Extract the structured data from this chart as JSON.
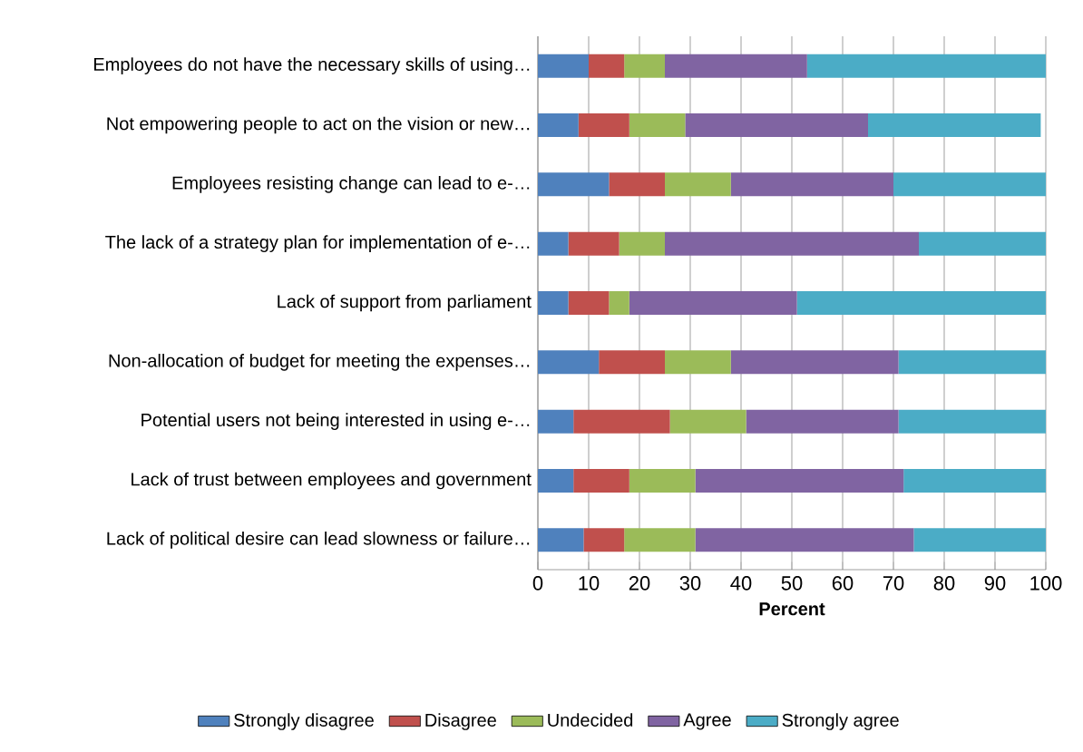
{
  "chart_data": {
    "type": "bar",
    "orientation": "horizontal",
    "stacked": true,
    "categories": [
      "Employees do not have the necessary skills of using…",
      "Not empowering people to act on the vision or new…",
      "Employees resisting change can lead to e-…",
      "The lack of a strategy plan for implementation of e-…",
      "Lack of support from parliament",
      "Non-allocation of budget for meeting the expenses…",
      "Potential users not being interested in using e-…",
      "Lack of trust between employees and government",
      "Lack of political desire can lead slowness or failure…"
    ],
    "series": [
      {
        "name": "Strongly disagree",
        "color": "#4f81bd",
        "values": [
          10,
          8,
          14,
          6,
          6,
          12,
          7,
          7,
          9
        ]
      },
      {
        "name": "Disagree",
        "color": "#c0504d",
        "values": [
          7,
          10,
          11,
          10,
          8,
          13,
          19,
          11,
          8
        ]
      },
      {
        "name": "Undecided",
        "color": "#9bbb59",
        "values": [
          8,
          11,
          13,
          9,
          4,
          13,
          15,
          13,
          14
        ]
      },
      {
        "name": "Agree",
        "color": "#8064a2",
        "values": [
          28,
          36,
          32,
          50,
          33,
          33,
          30,
          41,
          43
        ]
      },
      {
        "name": "Strongly agree",
        "color": "#4bacc6",
        "values": [
          47,
          34,
          30,
          25,
          49,
          29,
          29,
          28,
          26
        ]
      }
    ],
    "xlim": [
      0,
      100
    ],
    "xticks": [
      0,
      10,
      20,
      30,
      40,
      50,
      60,
      70,
      80,
      90,
      100
    ],
    "xlabel": "Percent",
    "grid": "x",
    "legend": "bottom"
  }
}
